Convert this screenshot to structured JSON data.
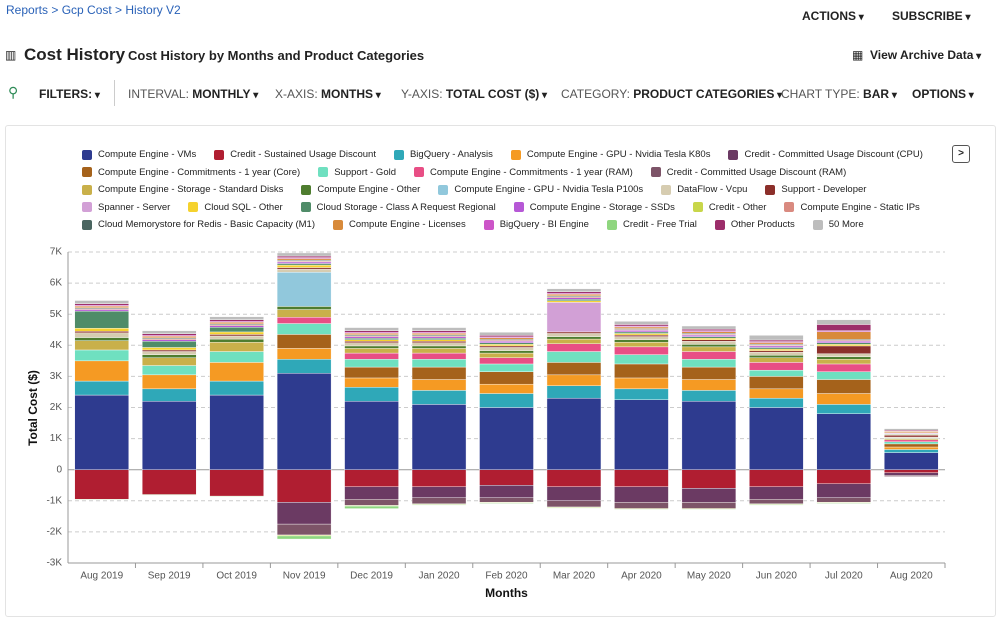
{
  "breadcrumb": "Reports > Gcp Cost > History V2",
  "actions": [
    "ACTIONS",
    "SUBSCRIBE"
  ],
  "page_title": "Cost History",
  "subtitle": "Cost History by Months and Product Categories",
  "archive": "View Archive Data",
  "toolbar": {
    "filters": "FILTERS:",
    "items": [
      {
        "label": "INTERVAL:",
        "value": "MONTHLY"
      },
      {
        "label": "X-AXIS:",
        "value": "MONTHS"
      },
      {
        "label": "Y-AXIS:",
        "value": "TOTAL COST ($)"
      },
      {
        "label": "CATEGORY:",
        "value": "PRODUCT CATEGORIES"
      },
      {
        "label": "CHART TYPE:",
        "value": "BAR"
      }
    ],
    "options": "OPTIONS"
  },
  "legend_more": ">",
  "chart_data": {
    "type": "stacked_bar",
    "xlabel": "Months",
    "ylabel": "Total Cost ($)",
    "categories": [
      "Aug 2019",
      "Sep 2019",
      "Oct 2019",
      "Nov 2019",
      "Dec 2019",
      "Jan 2020",
      "Feb 2020",
      "Mar 2020",
      "Apr 2020",
      "May 2020",
      "Jun 2020",
      "Jul 2020",
      "Aug 2020"
    ],
    "ylim": [
      -3000,
      7000
    ],
    "yticks": [
      {
        "value": -3000,
        "label": "-3K"
      },
      {
        "value": -2000,
        "label": "-2K"
      },
      {
        "value": -1000,
        "label": "-1K"
      },
      0,
      {
        "value": 1000,
        "label": "1K"
      },
      {
        "value": 2000,
        "label": "2K"
      },
      {
        "value": 3000,
        "label": "3K"
      },
      {
        "value": 4000,
        "label": "4K"
      },
      {
        "value": 5000,
        "label": "5K"
      },
      {
        "value": 6000,
        "label": "6K"
      },
      {
        "value": 7000,
        "label": "7K"
      }
    ],
    "grid": true,
    "series": [
      {
        "name": "Compute Engine - VMs",
        "color": "#2e3b8f",
        "values": [
          2400,
          2200,
          2400,
          3100,
          2200,
          2100,
          2000,
          2300,
          2250,
          2200,
          2000,
          1800,
          550
        ]
      },
      {
        "name": "Credit - Sustained Usage Discount",
        "color": "#b01e31",
        "values": [
          -950,
          -800,
          -850,
          -1050,
          -550,
          -550,
          -500,
          -550,
          -550,
          -600,
          -550,
          -450,
          -100
        ]
      },
      {
        "name": "BigQuery - Analysis",
        "color": "#2fa8b8",
        "values": [
          450,
          400,
          450,
          450,
          450,
          450,
          450,
          400,
          350,
          350,
          300,
          300,
          100
        ]
      },
      {
        "name": "Compute Engine - GPU - Nvidia Tesla K80s",
        "color": "#f59a23",
        "values": [
          650,
          450,
          600,
          350,
          300,
          350,
          300,
          350,
          350,
          350,
          300,
          350,
          80
        ]
      },
      {
        "name": "Credit - Committed Usage Discount (CPU)",
        "color": "#6b3a63",
        "values": [
          0,
          0,
          0,
          -700,
          -400,
          -350,
          -400,
          -450,
          -500,
          -450,
          -400,
          -450,
          -80
        ]
      },
      {
        "name": "Compute Engine - Commitments - 1 year (Core)",
        "color": "#a5621b",
        "values": [
          0,
          0,
          0,
          450,
          350,
          400,
          400,
          400,
          450,
          400,
          400,
          450,
          100
        ]
      },
      {
        "name": "Support - Gold",
        "color": "#6fe0c0",
        "values": [
          350,
          300,
          350,
          350,
          250,
          250,
          250,
          350,
          300,
          250,
          200,
          250,
          70
        ]
      },
      {
        "name": "Compute Engine - Commitments - 1 year (RAM)",
        "color": "#e84e85",
        "values": [
          0,
          0,
          0,
          200,
          200,
          200,
          200,
          250,
          250,
          250,
          250,
          250,
          60
        ]
      },
      {
        "name": "Credit - Committed Usage Discount (RAM)",
        "color": "#7d5468",
        "values": [
          0,
          0,
          0,
          -350,
          -200,
          -200,
          -150,
          -200,
          -200,
          -200,
          -150,
          -150,
          -40
        ]
      },
      {
        "name": "Compute Engine - Storage - Standard Disks",
        "color": "#c9b04a",
        "values": [
          300,
          250,
          300,
          250,
          150,
          150,
          150,
          150,
          150,
          150,
          150,
          150,
          40
        ]
      },
      {
        "name": "Compute Engine - Other",
        "color": "#4e7d2f",
        "values": [
          100,
          100,
          100,
          100,
          80,
          80,
          80,
          80,
          80,
          80,
          80,
          80,
          20
        ]
      },
      {
        "name": "Compute Engine - GPU - Nvidia Tesla P100s",
        "color": "#91c8dc",
        "values": [
          0,
          0,
          0,
          1100,
          0,
          0,
          0,
          0,
          0,
          0,
          0,
          0,
          0
        ]
      },
      {
        "name": "DataFlow - Vcpu",
        "color": "#d6ccb0",
        "values": [
          150,
          100,
          100,
          100,
          100,
          100,
          100,
          100,
          100,
          100,
          100,
          100,
          30
        ]
      },
      {
        "name": "Support - Developer",
        "color": "#8c2f2a",
        "values": [
          50,
          50,
          50,
          50,
          50,
          50,
          50,
          50,
          50,
          50,
          50,
          250,
          60
        ]
      },
      {
        "name": "Spanner - Server",
        "color": "#d2a0d6",
        "values": [
          0,
          0,
          0,
          0,
          0,
          0,
          0,
          950,
          0,
          0,
          0,
          0,
          0
        ]
      },
      {
        "name": "Cloud SQL - Other",
        "color": "#f5d22e",
        "values": [
          100,
          80,
          80,
          80,
          50,
          50,
          50,
          50,
          50,
          50,
          50,
          50,
          20
        ]
      },
      {
        "name": "Cloud Storage - Class A Request Regional",
        "color": "#4f8c68",
        "values": [
          550,
          200,
          150,
          50,
          50,
          50,
          50,
          50,
          50,
          50,
          50,
          50,
          20
        ]
      },
      {
        "name": "Compute Engine - Storage - SSDs",
        "color": "#b658d6",
        "values": [
          50,
          50,
          50,
          50,
          50,
          50,
          50,
          50,
          50,
          50,
          50,
          50,
          20
        ]
      },
      {
        "name": "Credit - Other",
        "color": "#c8d64a",
        "values": [
          0,
          0,
          0,
          -30,
          -20,
          -20,
          -20,
          -20,
          -20,
          -20,
          -20,
          -20,
          0
        ]
      },
      {
        "name": "Compute Engine - Static IPs",
        "color": "#d98a80",
        "values": [
          30,
          30,
          30,
          30,
          30,
          30,
          30,
          30,
          30,
          30,
          30,
          30,
          10
        ]
      },
      {
        "name": "Cloud Memorystore for Redis - Basic Capacity (M1)",
        "color": "#4a6560",
        "values": [
          30,
          30,
          30,
          30,
          30,
          30,
          30,
          30,
          30,
          30,
          30,
          30,
          10
        ]
      },
      {
        "name": "Compute Engine - Licenses",
        "color": "#d88a3a",
        "values": [
          50,
          50,
          50,
          50,
          50,
          50,
          50,
          50,
          50,
          50,
          50,
          250,
          40
        ]
      },
      {
        "name": "BigQuery - BI Engine",
        "color": "#cc55c8",
        "values": [
          30,
          30,
          30,
          30,
          30,
          30,
          30,
          30,
          30,
          30,
          30,
          30,
          10
        ]
      },
      {
        "name": "Credit - Free Trial",
        "color": "#8fd67f",
        "values": [
          -20,
          -20,
          -20,
          -100,
          -80,
          -20,
          -20,
          -20,
          -20,
          -20,
          -20,
          -20,
          0
        ]
      },
      {
        "name": "Other Products",
        "color": "#9c2d6a",
        "values": [
          50,
          50,
          50,
          50,
          50,
          50,
          50,
          50,
          50,
          50,
          50,
          200,
          30
        ]
      },
      {
        "name": "50 More",
        "color": "#bdbdbd",
        "values": [
          100,
          100,
          100,
          100,
          100,
          100,
          100,
          100,
          100,
          100,
          150,
          150,
          50
        ]
      }
    ]
  }
}
